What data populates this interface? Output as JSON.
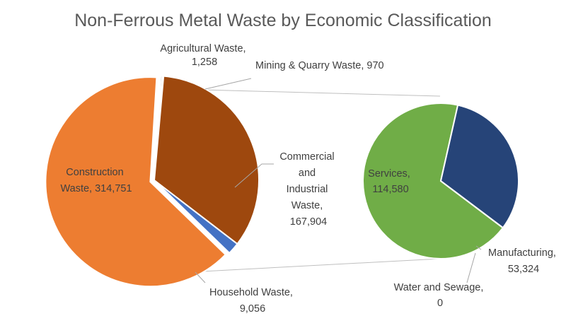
{
  "chart_data": {
    "type": "pie",
    "subtype": "pie-of-pie",
    "title": "Non-Ferrous Metal Waste by Economic Classification",
    "main_pie": {
      "slices": [
        {
          "name": "Construction Waste",
          "value": 314751,
          "value_label": "314,751",
          "color": "#ED7D31"
        },
        {
          "name": "Agricultural Waste",
          "value": 1258,
          "value_label": "1,258",
          "color": "#A5A5A5"
        },
        {
          "name": "Mining & Quarry Waste",
          "value": 970,
          "value_label": "970",
          "color": "#FFC000"
        },
        {
          "name": "Commercial and Industrial Waste",
          "value": 167904,
          "value_label": "167,904",
          "color": "#9E480E"
        },
        {
          "name": "Household Waste",
          "value": 9056,
          "value_label": "9,056",
          "color": "#4472C4"
        }
      ]
    },
    "secondary_pie": {
      "source_slice": "Commercial and Industrial Waste",
      "slices": [
        {
          "name": "Services",
          "value": 114580,
          "value_label": "114,580",
          "color": "#70AD47"
        },
        {
          "name": "Manufacturing",
          "value": 53324,
          "value_label": "53,324",
          "color": "#264478"
        },
        {
          "name": "Water and Sewage",
          "value": 0,
          "value_label": "0",
          "color": "#7F7F7F"
        }
      ]
    }
  },
  "labels": {
    "agricultural": [
      "Agricultural Waste,",
      "1,258"
    ],
    "mining": [
      "Mining & Quarry Waste, 970"
    ],
    "construction": [
      "Construction",
      "Waste, 314,751"
    ],
    "commercial": [
      "Commercial",
      "and",
      "Industrial",
      "Waste,",
      "167,904"
    ],
    "household": [
      "Household Waste,",
      "9,056"
    ],
    "services": [
      "Services,",
      "114,580"
    ],
    "manufacturing": [
      "Manufacturing,",
      "53,324"
    ],
    "water": [
      "Water and Sewage,",
      "0"
    ]
  }
}
